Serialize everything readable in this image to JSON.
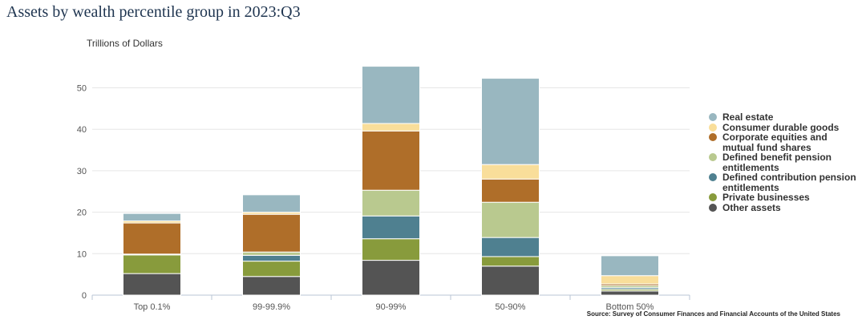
{
  "chart_data": {
    "type": "bar",
    "stacked": true,
    "title": "Assets by wealth percentile group in 2023:Q3",
    "ylabel": "Trillions of Dollars",
    "xlabel": "",
    "ylim": [
      0,
      55
    ],
    "yticks": [
      0,
      10,
      20,
      30,
      40,
      50
    ],
    "categories": [
      "Top 0.1%",
      "99-99.9%",
      "90-99%",
      "50-90%",
      "Bottom 50%"
    ],
    "series": [
      {
        "name": "Other assets",
        "color": "#545454",
        "values": [
          5.2,
          4.5,
          8.4,
          7.0,
          1.0
        ]
      },
      {
        "name": "Private businesses",
        "color": "#889b3c",
        "values": [
          4.5,
          3.7,
          5.2,
          2.3,
          0.4
        ]
      },
      {
        "name": "Defined contribution pension entitlements",
        "color": "#4f8090",
        "values": [
          0.1,
          1.4,
          5.5,
          4.6,
          0.4
        ]
      },
      {
        "name": "Defined benefit pension entitlements",
        "color": "#b9c98f",
        "values": [
          0.1,
          0.8,
          6.2,
          8.5,
          0.5
        ]
      },
      {
        "name": "Corporate equities and mutual fund shares",
        "color": "#af6e29",
        "values": [
          7.5,
          9.1,
          14.3,
          5.6,
          0.4
        ]
      },
      {
        "name": "Consumer durable goods",
        "color": "#f9de9a",
        "values": [
          0.5,
          0.5,
          1.8,
          3.5,
          2.0
        ]
      },
      {
        "name": "Real estate",
        "color": "#99b7c0",
        "values": [
          1.8,
          4.2,
          13.8,
          20.8,
          4.8
        ]
      }
    ],
    "legend": {
      "position": "right"
    },
    "grid": true
  },
  "legend_items": [
    {
      "label": "Real estate",
      "color": "#99b7c0"
    },
    {
      "label": "Consumer durable goods",
      "color": "#f9de9a"
    },
    {
      "label": "Corporate equities and mutual fund shares",
      "color": "#af6e29"
    },
    {
      "label": "Defined benefit pension entitlements",
      "color": "#b9c98f"
    },
    {
      "label": "Defined contribution pension entitlements",
      "color": "#4f8090"
    },
    {
      "label": "Private businesses",
      "color": "#889b3c"
    },
    {
      "label": "Other assets",
      "color": "#545454"
    }
  ],
  "source": "Source: Survey of Consumer Finances and Financial Accounts of the United States"
}
